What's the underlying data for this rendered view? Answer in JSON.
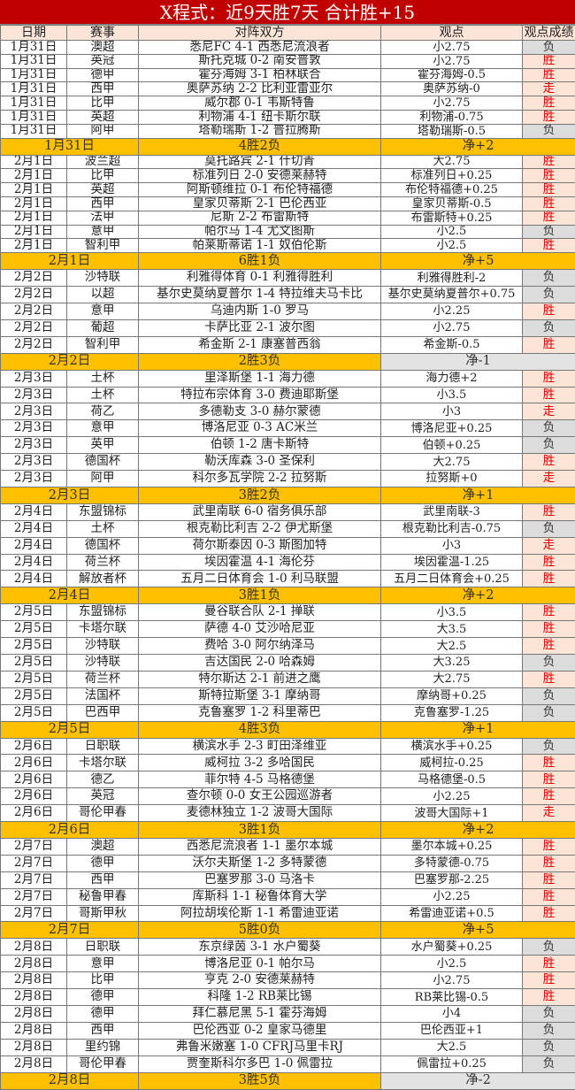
{
  "title": "X程式：近9天胜7天 合计胜+15",
  "headers": [
    "日期",
    "赛事",
    "对阵双方",
    "观点",
    "观点成绩"
  ],
  "colors": {
    "title_bg": "#c00000",
    "summary_bg": "#ffc000",
    "win": "#e00000",
    "loss_bg": "#dcdcdc",
    "win_bg": "#fce4d6"
  },
  "sections": [
    {
      "rows": [
        [
          "1月31日",
          "澳超",
          "悉尼FC 4-1 西悉尼流浪者",
          "小2.75",
          "负"
        ],
        [
          "1月31日",
          "英冠",
          "斯托克城 0-2 南安普敦",
          "小2.75",
          "胜"
        ],
        [
          "1月31日",
          "德甲",
          "霍芬海姆 3-1 柏林联合",
          "霍芬海姆-0.5",
          "胜"
        ],
        [
          "1月31日",
          "西甲",
          "奥萨苏纳 2-2 比利亚雷亚尔",
          "奥萨苏纳-0",
          "走"
        ],
        [
          "1月31日",
          "比甲",
          "威尔郡 0-1 韦斯特鲁",
          "小2.75",
          "胜"
        ],
        [
          "1月31日",
          "英超",
          "利物浦 4-1 纽卡斯尔联",
          "利物浦-0.75",
          "胜"
        ],
        [
          "1月31日",
          "阿甲",
          "塔勒瑞斯 1-2 普拉腾斯",
          "塔勒瑞斯-0.5",
          "负"
        ]
      ],
      "summary": {
        "date": "1月31日",
        "record": "4胜2负",
        "net": "净+2"
      }
    },
    {
      "rows": [
        [
          "2月1日",
          "波兰超",
          "莫托路宾 2-1 什切青",
          "大2.75",
          "胜"
        ],
        [
          "2月1日",
          "比甲",
          "标准列日 2-0 安德莱赫特",
          "标准列日+0.25",
          "胜"
        ],
        [
          "2月1日",
          "英超",
          "阿斯顿维拉 0-1 布伦特福德",
          "布伦特福德+0.25",
          "胜"
        ],
        [
          "2月1日",
          "西甲",
          "皇家贝蒂斯 2-1 巴伦西亚",
          "皇家贝蒂斯-0.5",
          "胜"
        ],
        [
          "2月1日",
          "法甲",
          "尼斯 2-2 布雷斯特",
          "布雷斯特+0.25",
          "胜"
        ],
        [
          "2月1日",
          "意甲",
          "帕尔马 1-4 尤文图斯",
          "小2.5",
          "负"
        ],
        [
          "2月1日",
          "智利甲",
          "帕莱斯蒂诺 1-1 奴伯伦斯",
          "小2.5",
          "胜"
        ]
      ],
      "summary": {
        "date": "2月1日",
        "record": "6胜1负",
        "net": "净+5"
      }
    },
    {
      "rows": [
        [
          "2月2日",
          "沙特联",
          "利雅得体育 0-1 利雅得胜利",
          "利雅得胜利-2",
          "负"
        ],
        [
          "2月2日",
          "以超",
          "基尔史莫纳夏普尔 1-4 特拉维夫马卡比",
          "基尔史莫纳夏普尔+0.75",
          "负"
        ],
        [
          "2月2日",
          "意甲",
          "乌迪内斯 1-0 罗马",
          "小2.25",
          "胜"
        ],
        [
          "2月2日",
          "葡超",
          "卡萨比亚 2-1 波尔图",
          "小2.75",
          "负"
        ],
        [
          "2月2日",
          "智利甲",
          "希金斯 2-1 康塞普西翁",
          "希金斯-0.5",
          "胜"
        ]
      ],
      "summary": {
        "date": "2月2日",
        "record": "2胜3负",
        "net": "净-1"
      }
    },
    {
      "rows": [
        [
          "2月3日",
          "土杯",
          "里泽斯堡 1-1 海力德",
          "海力德+2",
          "胜"
        ],
        [
          "2月3日",
          "土杯",
          "特拉布宗体育 3-0 费迪耶斯堡",
          "小3.5",
          "胜"
        ],
        [
          "2月3日",
          "荷乙",
          "多德勒支 3-0 赫尔蒙德",
          "小3",
          "走"
        ],
        [
          "2月3日",
          "意甲",
          "博洛尼亚 0-3 AC米兰",
          "博洛尼亚+0.25",
          "负"
        ],
        [
          "2月3日",
          "英甲",
          "伯顿 1-2 唐卡斯特",
          "伯顿+0.25",
          "负"
        ],
        [
          "2月3日",
          "德国杯",
          "勒沃库森 3-0 圣保利",
          "大2.75",
          "胜"
        ],
        [
          "2月3日",
          "阿甲",
          "科尔多瓦学院 2-2 拉努斯",
          "拉努斯+0",
          "走"
        ]
      ],
      "summary": {
        "date": "2月3日",
        "record": "3胜2负",
        "net": "净+1"
      }
    },
    {
      "rows": [
        [
          "2月4日",
          "东盟锦标",
          "武里南联 6-0 宿务俱乐部",
          "武里南联-3",
          "胜"
        ],
        [
          "2月4日",
          "土杯",
          "根克勒比利吉 2-2 伊尤斯堡",
          "根克勒比利吉-0.75",
          "负"
        ],
        [
          "2月4日",
          "德国杯",
          "荷尔斯泰因 0-3 斯图加特",
          "小3",
          "走"
        ],
        [
          "2月4日",
          "荷兰杯",
          "埃因霍温 4-1 海伦芬",
          "埃因霍温-1.25",
          "胜"
        ],
        [
          "2月4日",
          "解放者杯",
          "五月二日体育会 1-0 利马联盟",
          "五月二日体育会+0.25",
          "胜"
        ]
      ],
      "summary": {
        "date": "2月4日",
        "record": "3胜1负",
        "net": "净+2"
      }
    },
    {
      "rows": [
        [
          "2月5日",
          "东盟锦标",
          "曼谷联合队 2-1 掸联",
          "小3.5",
          "胜"
        ],
        [
          "2月5日",
          "卡塔尔联",
          "萨德 4-0 艾沙哈尼亚",
          "大3.5",
          "胜"
        ],
        [
          "2月5日",
          "沙特联",
          "费哈 3-0 阿尔纳泽马",
          "大2.5",
          "胜"
        ],
        [
          "2月5日",
          "沙特联",
          "吉达国民 2-0 哈森姆",
          "大3.25",
          "负"
        ],
        [
          "2月5日",
          "荷兰杯",
          "特尔斯达 2-1 前进之鹰",
          "大2.75",
          "胜"
        ],
        [
          "2月5日",
          "法国杯",
          "斯特拉斯堡 3-1 摩纳哥",
          "摩纳哥+0.25",
          "负"
        ],
        [
          "2月5日",
          "巴西甲",
          "克鲁塞罗 1-2 科里蒂巴",
          "克鲁塞罗-1.25",
          "负"
        ]
      ],
      "summary": {
        "date": "2月5日",
        "record": "4胜3负",
        "net": "净+1"
      }
    },
    {
      "rows": [
        [
          "2月6日",
          "日职联",
          "横滨水手 2-3 町田泽维亚",
          "横滨水手+0.25",
          "负"
        ],
        [
          "2月6日",
          "卡塔尔联",
          "威柯拉 3-2 多哈国民",
          "威柯拉-0.25",
          "胜"
        ],
        [
          "2月6日",
          "德乙",
          "菲尔特 4-5 马格德堡",
          "马格德堡-0.5",
          "胜"
        ],
        [
          "2月6日",
          "英冠",
          "查尔顿 0-0 女王公园巡游者",
          "小2.25",
          "胜"
        ],
        [
          "2月6日",
          "哥伦甲春",
          "麦德林独立 1-2 波哥大国际",
          "波哥大国际+1",
          "走"
        ]
      ],
      "summary": {
        "date": "2月6日",
        "record": "3胜1负",
        "net": "净+2"
      }
    },
    {
      "rows": [
        [
          "2月7日",
          "澳超",
          "西悉尼流浪者 1-1 墨尔本城",
          "墨尔本城+0.25",
          "胜"
        ],
        [
          "2月7日",
          "德甲",
          "沃尔夫斯堡 1-2 多特蒙德",
          "多特蒙德-0.75",
          "胜"
        ],
        [
          "2月7日",
          "西甲",
          "巴塞罗那 3-0 马洛卡",
          "巴塞罗那-2.25",
          "胜"
        ],
        [
          "2月7日",
          "秘鲁甲春",
          "库斯科 1-1 秘鲁体育大学",
          "小2.25",
          "胜"
        ],
        [
          "2月7日",
          "哥斯甲秋",
          "阿拉胡埃伦斯 1-1 希雷迪亚诺",
          "希雷迪亚诺+0.5",
          "胜"
        ]
      ],
      "summary": {
        "date": "2月7日",
        "record": "5胜0负",
        "net": "净+5"
      }
    },
    {
      "rows": [
        [
          "2月8日",
          "日职联",
          "东京绿茵 3-1 水户蜀葵",
          "水户蜀葵+0.25",
          "负"
        ],
        [
          "2月8日",
          "意甲",
          "博洛尼亚 0-1 帕尔马",
          "小2.5",
          "胜"
        ],
        [
          "2月8日",
          "比甲",
          "亨克 2-0 安德莱赫特",
          "小2.75",
          "胜"
        ],
        [
          "2月8日",
          "德甲",
          "科隆 1-2 RB莱比锡",
          "RB莱比锡-0.5",
          "胜"
        ],
        [
          "2月8日",
          "德甲",
          "拜仁慕尼黑 5-1 霍芬海姆",
          "小4",
          "负"
        ],
        [
          "2月8日",
          "西甲",
          "巴伦西亚 0-2 皇家马德里",
          "巴伦西亚+1",
          "负"
        ],
        [
          "2月8日",
          "里约锦",
          "弗鲁米嫩塞 1-0 CFRJ马里卡RJ",
          "大2.5",
          "负"
        ],
        [
          "2月8日",
          "哥伦甲春",
          "贾奎斯科尔多巴 1-0 佩雷拉",
          "佩雷拉+0.25",
          "负"
        ]
      ],
      "summary": {
        "date": "2月8日",
        "record": "3胜5负",
        "net": "净-2"
      }
    }
  ]
}
